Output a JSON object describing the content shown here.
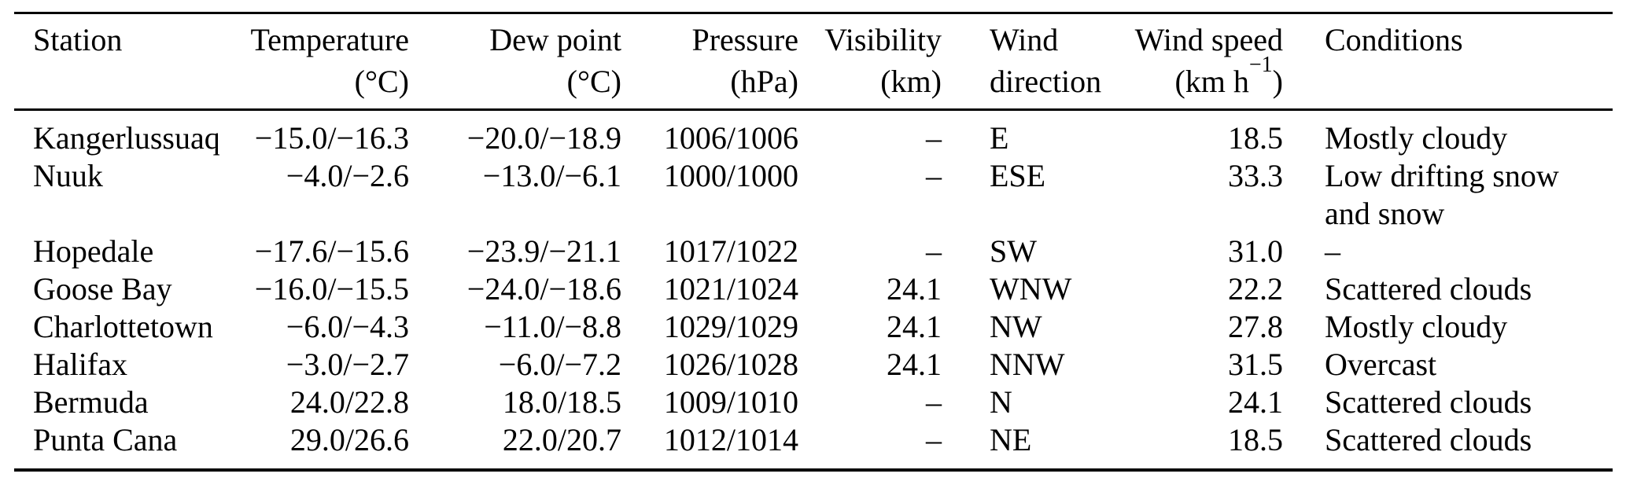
{
  "colors": {
    "background": "#ffffff",
    "text": "#000000",
    "rule": "#000000"
  },
  "table": {
    "columns": [
      {
        "label": "Station",
        "unit": ""
      },
      {
        "label": "Temperature",
        "unit": "(°C)"
      },
      {
        "label": "Dew point",
        "unit": "(°C)"
      },
      {
        "label": "Pressure",
        "unit": "(hPa)"
      },
      {
        "label": "Visibility",
        "unit": "(km)"
      },
      {
        "label": "Wind",
        "unit": "direction"
      },
      {
        "label": "Wind speed",
        "unit_prefix": "(km h",
        "unit_sup": "−1",
        "unit_suffix": ")"
      },
      {
        "label": "Conditions",
        "unit": ""
      }
    ],
    "row_keys": [
      "station",
      "temperature",
      "dew_point",
      "pressure",
      "visibility",
      "wind_direction",
      "wind_speed",
      "conditions"
    ],
    "rows": [
      {
        "station": "Kangerlussuaq",
        "temperature": "−15.0/−16.3",
        "dew_point": "−20.0/−18.9",
        "pressure": "1006/1006",
        "visibility": "–",
        "wind_direction": "E",
        "wind_speed": "18.5",
        "conditions": "Mostly cloudy"
      },
      {
        "station": "Nuuk",
        "temperature": "−4.0/−2.6",
        "dew_point": "−13.0/−6.1",
        "pressure": "1000/1000",
        "visibility": "–",
        "wind_direction": "ESE",
        "wind_speed": "33.3",
        "conditions": "Low drifting snow and snow"
      },
      {
        "station": "Hopedale",
        "temperature": "−17.6/−15.6",
        "dew_point": "−23.9/−21.1",
        "pressure": "1017/1022",
        "visibility": "–",
        "wind_direction": "SW",
        "wind_speed": "31.0",
        "conditions": "–"
      },
      {
        "station": "Goose Bay",
        "temperature": "−16.0/−15.5",
        "dew_point": "−24.0/−18.6",
        "pressure": "1021/1024",
        "visibility": "24.1",
        "wind_direction": "WNW",
        "wind_speed": "22.2",
        "conditions": "Scattered clouds"
      },
      {
        "station": "Charlottetown",
        "temperature": "−6.0/−4.3",
        "dew_point": "−11.0/−8.8",
        "pressure": "1029/1029",
        "visibility": "24.1",
        "wind_direction": "NW",
        "wind_speed": "27.8",
        "conditions": "Mostly cloudy"
      },
      {
        "station": "Halifax",
        "temperature": "−3.0/−2.7",
        "dew_point": "−6.0/−7.2",
        "pressure": "1026/1028",
        "visibility": "24.1",
        "wind_direction": "NNW",
        "wind_speed": "31.5",
        "conditions": "Overcast"
      },
      {
        "station": "Bermuda",
        "temperature": "24.0/22.8",
        "dew_point": "18.0/18.5",
        "pressure": "1009/1010",
        "visibility": "–",
        "wind_direction": "N",
        "wind_speed": "24.1",
        "conditions": "Scattered clouds"
      },
      {
        "station": "Punta Cana",
        "temperature": "29.0/26.6",
        "dew_point": "22.0/20.7",
        "pressure": "1012/1014",
        "visibility": "–",
        "wind_direction": "NE",
        "wind_speed": "18.5",
        "conditions": "Scattered clouds"
      }
    ]
  }
}
